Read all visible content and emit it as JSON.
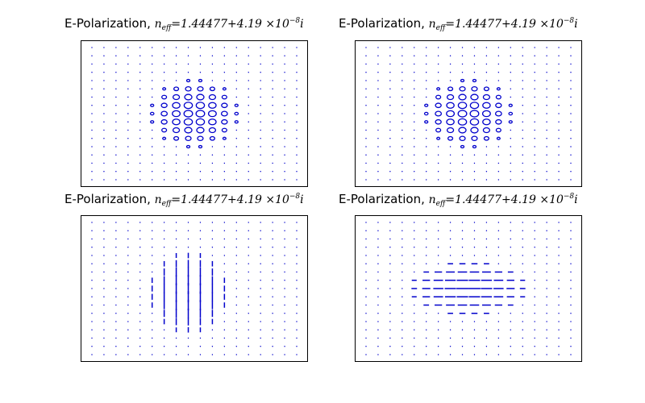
{
  "chart_data": [
    {
      "type": "scatter",
      "panel": "top-left",
      "title": {
        "prefix": "E-Polarization,",
        "symbol": "n",
        "subscript": "eff",
        "equals": "=1.44477",
        "plus": "+4.19",
        "times": "×10",
        "exponent": "−8",
        "imag": "i"
      },
      "grid_rows": 17,
      "grid_cols": 18,
      "field_pattern": "ellipses",
      "field_extent_cols": [
        5,
        12
      ],
      "field_extent_rows": [
        4,
        12
      ],
      "color": "#0000cc",
      "axes_ticks": false,
      "grid": false
    },
    {
      "type": "scatter",
      "panel": "top-right",
      "title": {
        "prefix": "E-Polarization,",
        "symbol": "n",
        "subscript": "eff",
        "equals": "=1.44477",
        "plus": "+4.19",
        "times": "×10",
        "exponent": "−8",
        "imag": "i"
      },
      "grid_rows": 17,
      "grid_cols": 18,
      "field_pattern": "ellipses",
      "field_extent_cols": [
        5,
        12
      ],
      "field_extent_rows": [
        4,
        12
      ],
      "color": "#0000cc",
      "axes_ticks": false,
      "grid": false
    },
    {
      "type": "scatter",
      "panel": "bottom-left",
      "title": {
        "prefix": "E-Polarization,",
        "symbol": "n",
        "subscript": "eff",
        "equals": "=1.44477",
        "plus": "+4.19",
        "times": "×10",
        "exponent": "−8",
        "imag": "i"
      },
      "grid_rows": 17,
      "grid_cols": 18,
      "field_pattern": "vertical-arrows",
      "field_extent_cols": [
        5,
        11
      ],
      "field_extent_rows": [
        4,
        13
      ],
      "color": "#0000cc",
      "axes_ticks": false,
      "grid": false
    },
    {
      "type": "scatter",
      "panel": "bottom-right",
      "title": {
        "prefix": "E-Polarization,",
        "symbol": "n",
        "subscript": "eff",
        "equals": "=1.44477",
        "plus": "+4.19",
        "times": "×10",
        "exponent": "−8",
        "imag": "i"
      },
      "grid_rows": 17,
      "grid_cols": 18,
      "field_pattern": "horizontal-arrows",
      "field_extent_cols": [
        4,
        13
      ],
      "field_extent_rows": [
        5,
        11
      ],
      "color": "#0000cc",
      "axes_ticks": false,
      "grid": false
    }
  ]
}
